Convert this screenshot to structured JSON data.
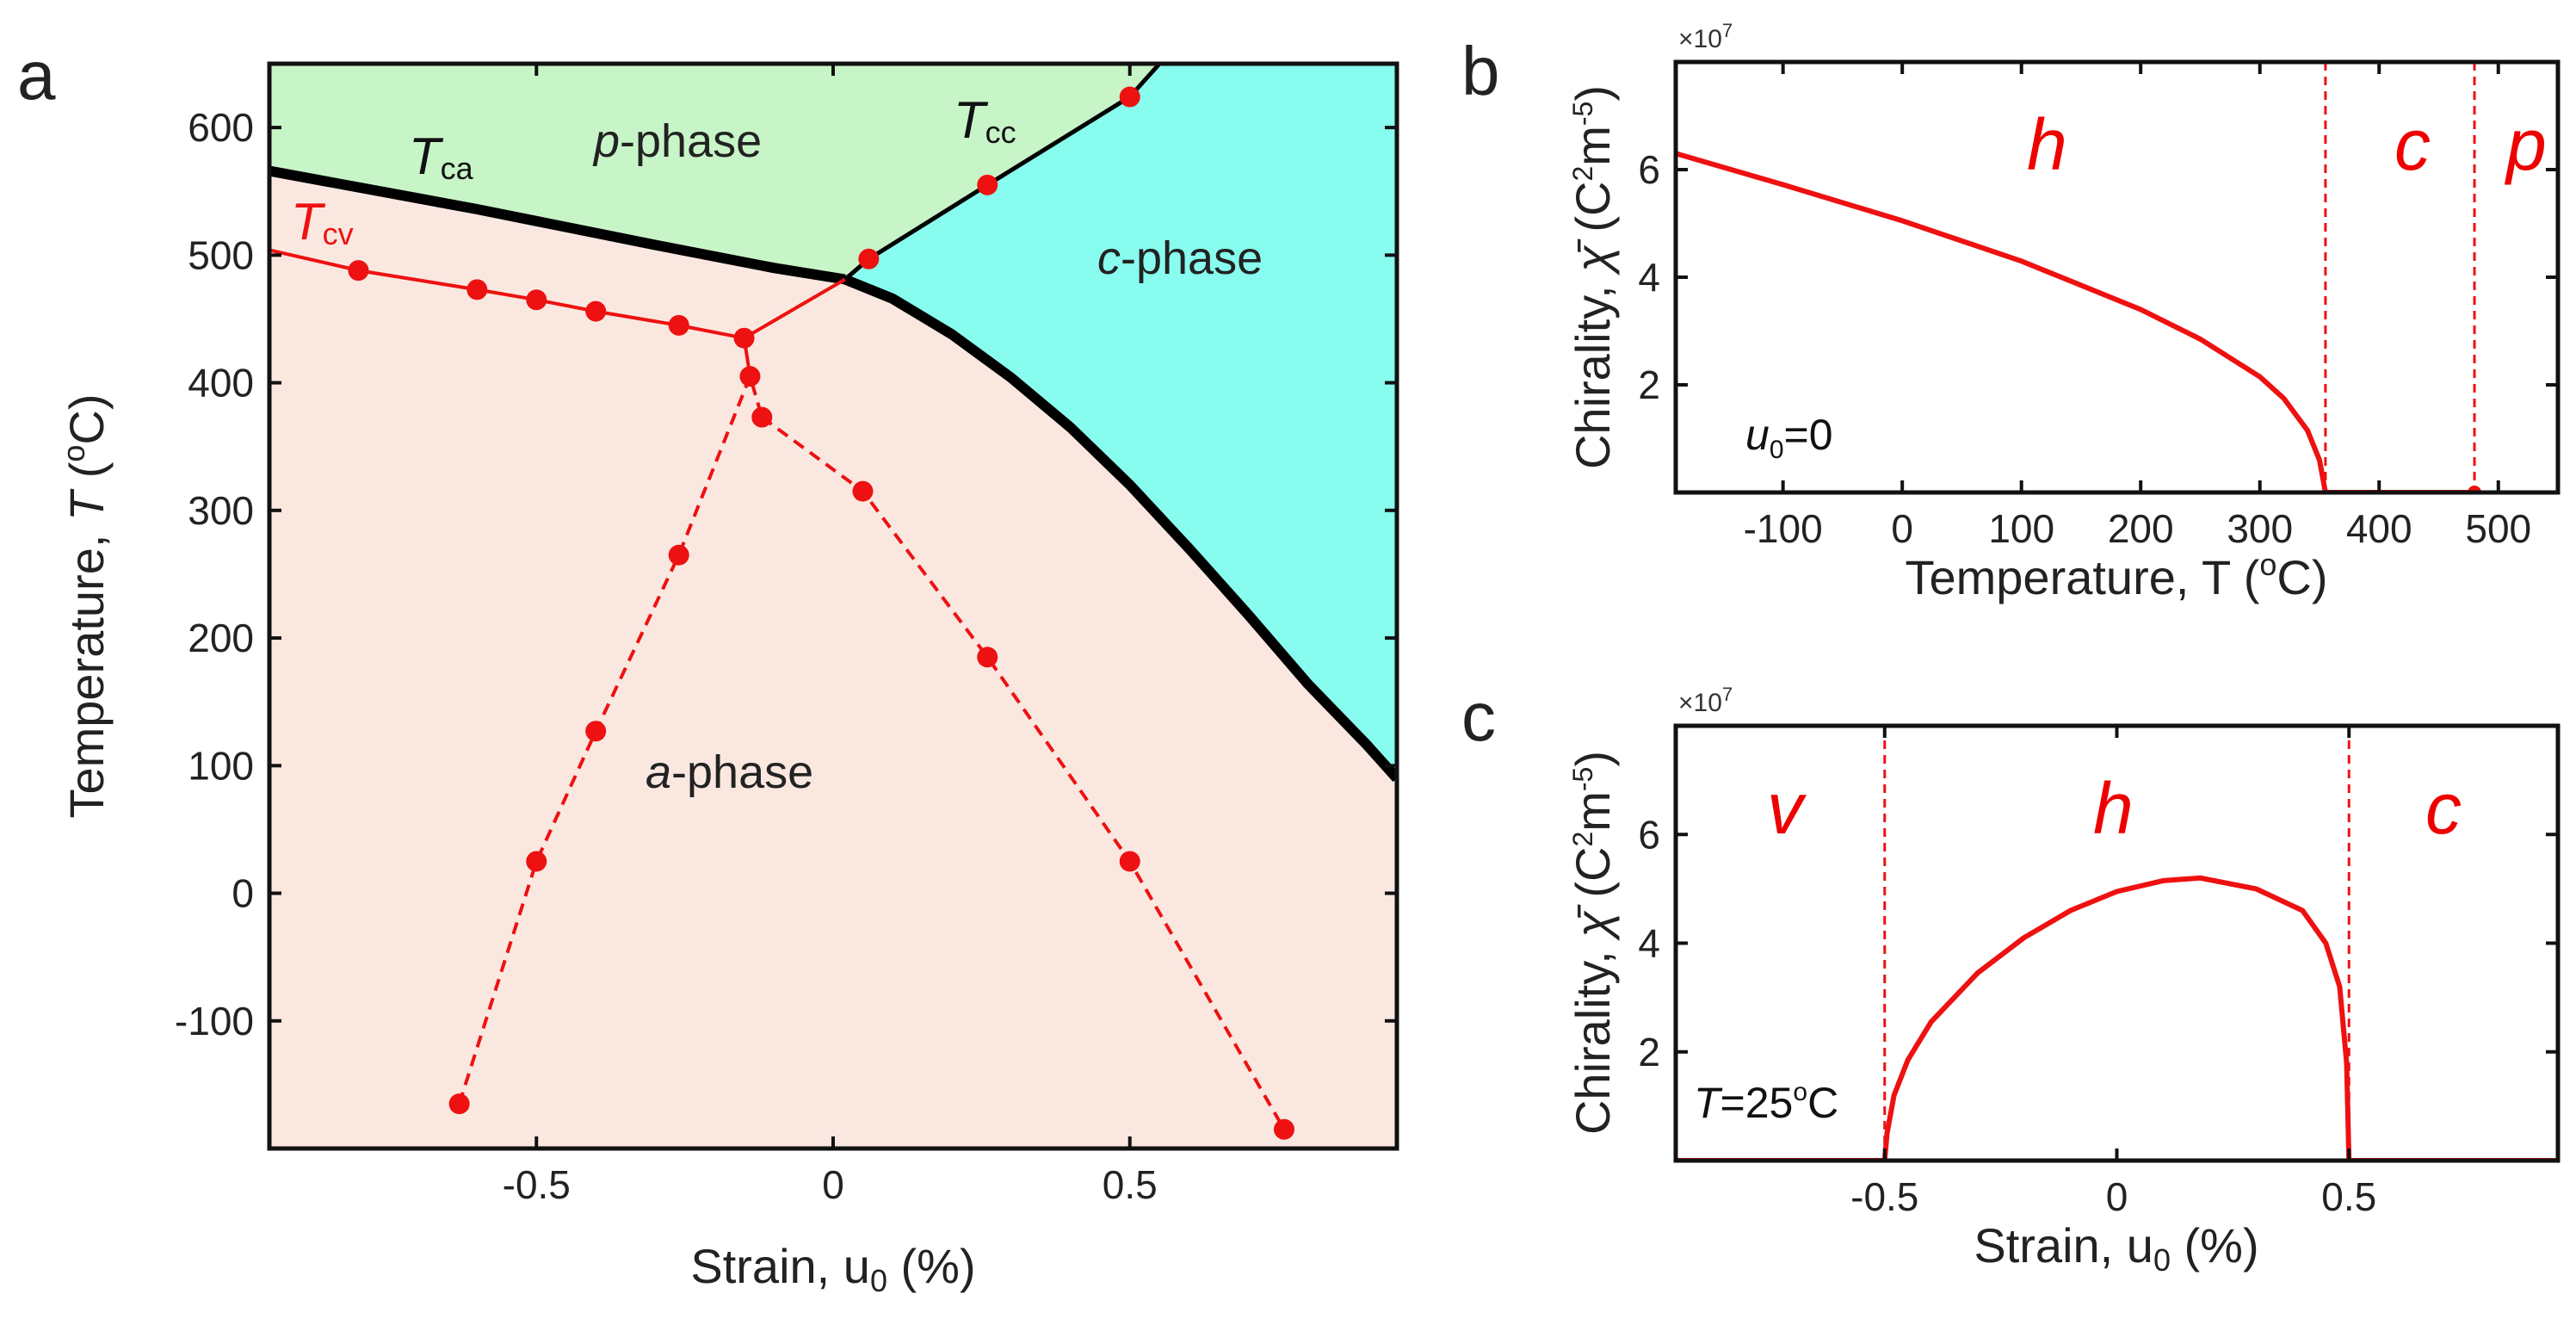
{
  "chart_data": [
    {
      "panel": "a",
      "type": "line",
      "title": "",
      "xlabel": "Strain, u",
      "xlabel_sub": "0",
      "xlabel_suffix": " (%)",
      "ylabel": "Temperature, ",
      "ylabel_italic": "T",
      "ylabel_open": " (",
      "ylabel_sup": "o",
      "ylabel_close": "C)",
      "xlim": [
        -0.95,
        0.95
      ],
      "ylim": [
        -200,
        650
      ],
      "xticks": [
        -0.5,
        0,
        0.5
      ],
      "xtick_labels": [
        "-0.5",
        "0",
        "0.5"
      ],
      "yticks": [
        -100,
        0,
        100,
        200,
        300,
        400,
        500,
        600
      ],
      "ytick_labels": [
        "-100",
        "0",
        "100",
        "200",
        "300",
        "400",
        "500",
        "600"
      ],
      "grid": false,
      "colors": {
        "p_phase": "#c8f5c8",
        "c_phase": "#88fcee",
        "a_phase": "#fae8e0",
        "boundary": "#000000",
        "transition": "#ee1111"
      },
      "phases": [
        {
          "name": "p",
          "suffix": "-phase"
        },
        {
          "name": "c",
          "suffix": "-phase"
        },
        {
          "name": "a",
          "suffix": "-phase"
        }
      ],
      "annotations": {
        "Tca": {
          "main": "T",
          "sub": "ca"
        },
        "Tcc": {
          "main": "T",
          "sub": "cc"
        },
        "Tcv": {
          "main": "T",
          "sub": "cv"
        }
      },
      "series": [
        {
          "name": "Tca",
          "style": "thick-black",
          "x": [
            -0.95,
            -0.6,
            -0.3,
            -0.1,
            0.02
          ],
          "y": [
            566,
            536,
            508,
            490,
            481
          ]
        },
        {
          "name": "Tac",
          "style": "thick-black",
          "x": [
            0.02,
            0.1,
            0.2,
            0.3,
            0.4,
            0.5,
            0.6,
            0.7,
            0.8,
            0.9,
            0.95
          ],
          "y": [
            481,
            466,
            438,
            404,
            365,
            320,
            270,
            218,
            164,
            116,
            90
          ]
        },
        {
          "name": "Tcc",
          "style": "black-line",
          "x": [
            0.02,
            0.06,
            0.26,
            0.5,
            0.55
          ],
          "y": [
            481,
            497,
            555,
            624,
            650
          ]
        },
        {
          "name": "Tcc-points",
          "style": "red-markers",
          "x": [
            0.06,
            0.26,
            0.5
          ],
          "y": [
            497,
            555,
            624
          ]
        },
        {
          "name": "Tcv",
          "style": "red-line",
          "x": [
            -0.95,
            -0.8,
            -0.6,
            -0.5,
            -0.4,
            -0.26,
            -0.15,
            0.02
          ],
          "y": [
            504,
            488,
            473,
            465,
            456,
            445,
            435,
            481
          ]
        },
        {
          "name": "Tcv-points",
          "style": "red-markers",
          "x": [
            -0.8,
            -0.6,
            -0.5,
            -0.4,
            -0.26,
            -0.15
          ],
          "y": [
            488,
            473,
            465,
            456,
            445,
            435
          ]
        },
        {
          "name": "left-dashed",
          "style": "red-dashed",
          "x": [
            -0.63,
            -0.5,
            -0.4,
            -0.26,
            -0.14,
            -0.12
          ],
          "y": [
            -165,
            25,
            127,
            265,
            405,
            373
          ]
        },
        {
          "name": "right-dashed",
          "style": "red-dashed",
          "x": [
            -0.12,
            0.05,
            0.26,
            0.5,
            0.76
          ],
          "y": [
            373,
            315,
            185,
            25,
            -185
          ]
        },
        {
          "name": "vertical-stub",
          "style": "red-line",
          "x": [
            -0.15,
            -0.14
          ],
          "y": [
            435,
            405
          ]
        }
      ]
    },
    {
      "panel": "b",
      "type": "line",
      "title": "",
      "xlabel": "Temperature, T (",
      "xlabel_sup": "o",
      "xlabel_suffix": "C)",
      "ylabel": "Chirality, ",
      "ylabel_symbol": "χ̄",
      "ylabel_units": " (C",
      "ylabel_sup1": "2",
      "ylabel_mid": "m",
      "ylabel_sup2": "-5",
      "ylabel_close": ")",
      "multiplier": "×10",
      "multiplier_exp": "7",
      "xlim": [
        -190,
        550
      ],
      "ylim": [
        0,
        8
      ],
      "xticks": [
        -100,
        0,
        100,
        200,
        300,
        400,
        500
      ],
      "xtick_labels": [
        "-100",
        "0",
        "100",
        "200",
        "300",
        "400",
        "500"
      ],
      "yticks": [
        2,
        4,
        6
      ],
      "ytick_labels": [
        "2",
        "4",
        "6"
      ],
      "condition": {
        "main": "u",
        "sub": "0",
        "rest": "=0"
      },
      "regions": [
        "h",
        "c",
        "p"
      ],
      "boundaries": [
        355,
        480
      ],
      "series": [
        {
          "name": "chirality",
          "x": [
            -190,
            -100,
            0,
            100,
            200,
            250,
            300,
            320,
            340,
            350,
            355,
            480
          ],
          "y": [
            6.3,
            5.72,
            5.05,
            4.3,
            3.4,
            2.85,
            2.15,
            1.75,
            1.15,
            0.6,
            0,
            0
          ]
        }
      ]
    },
    {
      "panel": "c",
      "type": "line",
      "title": "",
      "xlabel": "Strain, u",
      "xlabel_sub": "0",
      "xlabel_suffix": " (%)",
      "ylabel": "Chirality, ",
      "ylabel_symbol": "χ̄",
      "ylabel_units": " (C",
      "ylabel_sup1": "2",
      "ylabel_mid": "m",
      "ylabel_sup2": "-5",
      "ylabel_close": ")",
      "multiplier": "×10",
      "multiplier_exp": "7",
      "xlim": [
        -0.95,
        0.95
      ],
      "ylim": [
        0,
        8
      ],
      "xticks": [
        -0.5,
        0,
        0.5
      ],
      "xtick_labels": [
        "-0.5",
        "0",
        "0.5"
      ],
      "yticks": [
        2,
        4,
        6
      ],
      "ytick_labels": [
        "2",
        "4",
        "6"
      ],
      "condition": {
        "main": "T",
        "rest": "=25",
        "sup": "o",
        "tail": "C"
      },
      "regions": [
        "v",
        "h",
        "c"
      ],
      "boundaries": [
        -0.5,
        0.5
      ],
      "series": [
        {
          "name": "chirality",
          "x": [
            -0.95,
            -0.5,
            -0.495,
            -0.48,
            -0.45,
            -0.4,
            -0.3,
            -0.2,
            -0.1,
            0,
            0.1,
            0.18,
            0.3,
            0.4,
            0.45,
            0.48,
            0.495,
            0.5,
            0.95
          ],
          "y": [
            0,
            0,
            0.5,
            1.2,
            1.85,
            2.55,
            3.45,
            4.1,
            4.6,
            4.95,
            5.15,
            5.2,
            5.0,
            4.6,
            4.0,
            3.2,
            1.8,
            0,
            0
          ]
        }
      ]
    }
  ]
}
